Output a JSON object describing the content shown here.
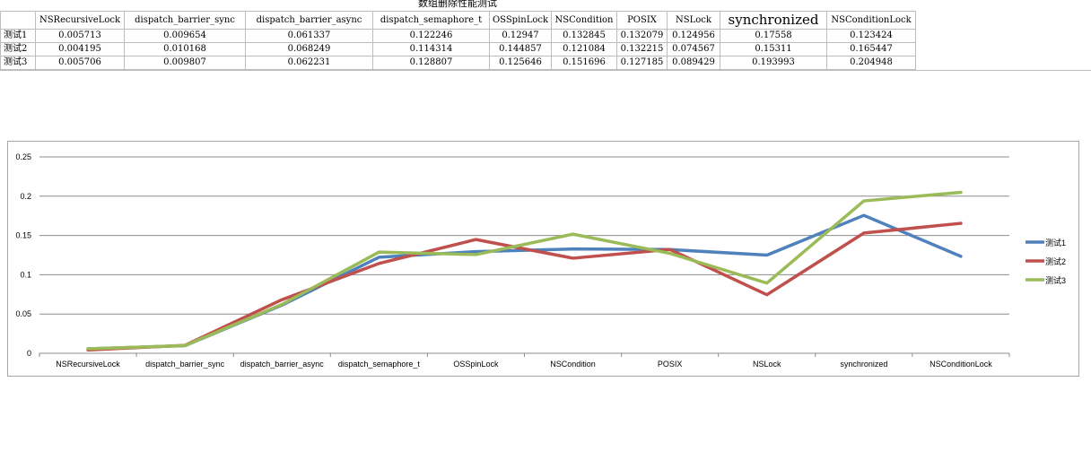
{
  "sheet": {
    "title": "数组删除性能测试",
    "columns": [
      "NSRecursiveLock",
      "dispatch_barrier_sync",
      "dispatch_barrier_async",
      "dispatch_semaphore_t",
      "OSSpinLock",
      "NSCondition",
      "POSIX",
      "NSLock",
      "synchronized",
      "NSConditionLock"
    ],
    "rows": [
      {
        "label": "测试1",
        "values": [
          "0.005713",
          "0.009654",
          "0.061337",
          "0.122246",
          "0.12947",
          "0.132845",
          "0.132079",
          "0.124956",
          "0.17558",
          "0.123424"
        ]
      },
      {
        "label": "测试2",
        "values": [
          "0.004195",
          "0.010168",
          "0.068249",
          "0.114314",
          "0.144857",
          "0.121084",
          "0.132215",
          "0.074567",
          "0.15311",
          "0.165447"
        ]
      },
      {
        "label": "测试3",
        "values": [
          "0.005706",
          "0.009807",
          "0.062231",
          "0.128807",
          "0.125646",
          "0.151696",
          "0.127185",
          "0.089429",
          "0.193993",
          "0.204948"
        ]
      }
    ]
  },
  "chart_data": {
    "type": "line",
    "title": "",
    "xlabel": "",
    "ylabel": "",
    "categories": [
      "NSRecursiveLock",
      "dispatch_barrier_sync",
      "dispatch_barrier_async",
      "dispatch_semaphore_t",
      "OSSpinLock",
      "NSCondition",
      "POSIX",
      "NSLock",
      "synchronized",
      "NSConditionLock"
    ],
    "ylim": [
      0,
      0.25
    ],
    "yticks": [
      "0",
      "0.05",
      "0.1",
      "0.15",
      "0.2",
      "0.25"
    ],
    "grid": true,
    "legend_position": "right",
    "series": [
      {
        "name": "测试1",
        "color": "#4f81bd",
        "values": [
          0.005713,
          0.009654,
          0.061337,
          0.122246,
          0.12947,
          0.132845,
          0.132079,
          0.124956,
          0.17558,
          0.123424
        ]
      },
      {
        "name": "测试2",
        "color": "#c0504d",
        "values": [
          0.004195,
          0.010168,
          0.068249,
          0.114314,
          0.144857,
          0.121084,
          0.132215,
          0.074567,
          0.15311,
          0.165447
        ]
      },
      {
        "name": "测试3",
        "color": "#9bbb59",
        "values": [
          0.005706,
          0.009807,
          0.062231,
          0.128807,
          0.125646,
          0.151696,
          0.127185,
          0.089429,
          0.193993,
          0.204948
        ]
      }
    ]
  }
}
